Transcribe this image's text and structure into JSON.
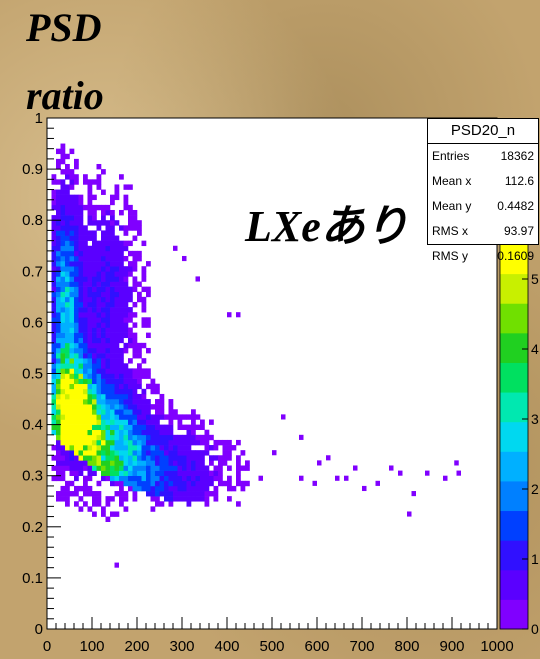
{
  "overlay_title": {
    "line1": "PSD",
    "line2": "ratio"
  },
  "annotation": "LXeあり",
  "stats": {
    "title": "PSD20_n",
    "rows": [
      {
        "label": "Entries",
        "value": "18362"
      },
      {
        "label": "Mean x",
        "value": "112.6"
      },
      {
        "label": "Mean y",
        "value": "0.4482"
      },
      {
        "label": "RMS x",
        "value": "93.97"
      },
      {
        "label": "RMS y",
        "value": "0.1609"
      }
    ]
  },
  "chart_data": {
    "type": "heatmap",
    "title": "",
    "xlabel": "",
    "ylabel": "",
    "xlim": [
      0,
      1000
    ],
    "ylim": [
      0,
      1
    ],
    "x_ticks": [
      0,
      100,
      200,
      300,
      400,
      500,
      600,
      700,
      800,
      900,
      1000
    ],
    "y_ticks": [
      0,
      0.1,
      0.2,
      0.3,
      0.4,
      0.5,
      0.6,
      0.7,
      0.8,
      0.9,
      1
    ],
    "x_tick_labels": [
      "0",
      "100",
      "200",
      "300",
      "400",
      "500",
      "600",
      "700",
      "800",
      "900",
      "1000"
    ],
    "y_tick_labels": [
      "0",
      "0.1",
      "0.2",
      "0.3",
      "0.4",
      "0.5",
      "0.6",
      "0.7",
      "0.8",
      "0.9",
      "1"
    ],
    "palette_ticks": [
      0,
      1,
      2,
      3,
      4,
      5
    ],
    "palette_tick_labels": [
      "0",
      "1",
      "2",
      "3",
      "4",
      "5"
    ],
    "palette_colors": [
      "#8000ff",
      "#5a00ff",
      "#3010ff",
      "#0040ff",
      "#0080ff",
      "#00b0ff",
      "#00d8f0",
      "#00e8b0",
      "#00e060",
      "#20d020",
      "#70e000",
      "#c8f000",
      "#ffff00"
    ],
    "clusters": [
      {
        "x": 55,
        "y": 0.42,
        "sx": 30,
        "sy": 0.06,
        "peak": 6.2
      },
      {
        "x": 110,
        "y": 0.36,
        "sx": 60,
        "sy": 0.07,
        "peak": 3.2
      },
      {
        "x": 35,
        "y": 0.6,
        "sx": 20,
        "sy": 0.14,
        "peak": 2.6
      },
      {
        "x": 200,
        "y": 0.3,
        "sx": 110,
        "sy": 0.06,
        "peak": 1.4
      },
      {
        "x": 120,
        "y": 0.65,
        "sx": 50,
        "sy": 0.12,
        "peak": 0.9
      }
    ],
    "outliers": [
      [
        280,
        0.74
      ],
      [
        300,
        0.72
      ],
      [
        330,
        0.68
      ],
      [
        400,
        0.61
      ],
      [
        420,
        0.61
      ],
      [
        520,
        0.41
      ],
      [
        560,
        0.37
      ],
      [
        590,
        0.28
      ],
      [
        620,
        0.33
      ],
      [
        660,
        0.29
      ],
      [
        700,
        0.27
      ],
      [
        760,
        0.31
      ],
      [
        780,
        0.3
      ],
      [
        810,
        0.26
      ],
      [
        840,
        0.3
      ],
      [
        880,
        0.29
      ],
      [
        905,
        0.32
      ],
      [
        910,
        0.3
      ],
      [
        800,
        0.22
      ],
      [
        640,
        0.29
      ],
      [
        730,
        0.28
      ],
      [
        680,
        0.31
      ],
      [
        150,
        0.12
      ],
      [
        560,
        0.29
      ],
      [
        500,
        0.34
      ],
      [
        600,
        0.32
      ],
      [
        470,
        0.29
      ]
    ]
  }
}
